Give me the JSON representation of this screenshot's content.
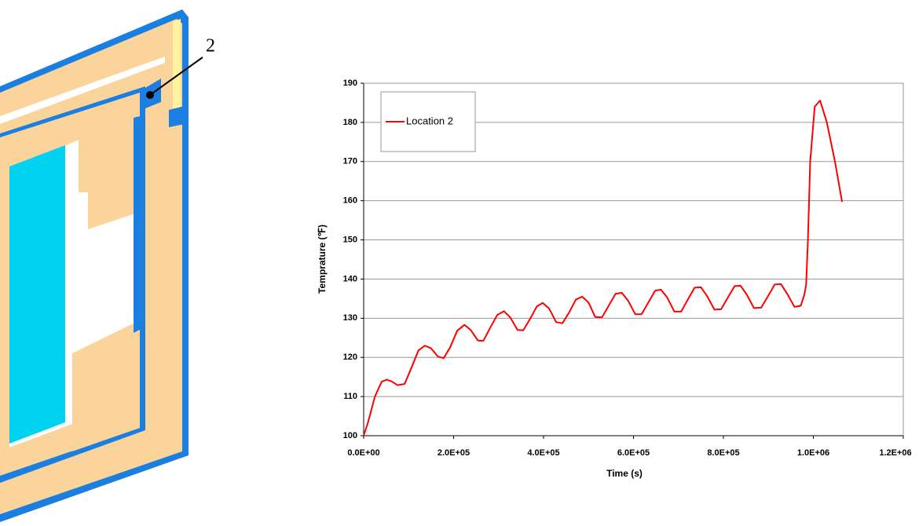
{
  "diagram": {
    "label": "2"
  },
  "chart_data": {
    "type": "line",
    "xlabel": "Time (s)",
    "ylabel": "Temprature (℉)",
    "x": [
      0,
      10000,
      25000,
      40000,
      51000,
      62000,
      75000,
      91000,
      105000,
      122000,
      136000,
      150000,
      165000,
      178000,
      192000,
      208000,
      224000,
      238000,
      254000,
      266000,
      281000,
      297000,
      312000,
      326000,
      342000,
      355000,
      370000,
      385000,
      398000,
      413000,
      428000,
      442000,
      457000,
      472000,
      486000,
      500000,
      515000,
      530000,
      545000,
      560000,
      574000,
      588000,
      604000,
      618000,
      633000,
      648000,
      661000,
      675000,
      691000,
      706000,
      721000,
      736000,
      750000,
      764000,
      780000,
      795000,
      810000,
      825000,
      838000,
      852000,
      868000,
      884000,
      899000,
      914000,
      928000,
      942000,
      958000,
      972000,
      980000,
      984000,
      988000,
      993000,
      1003000,
      1015000,
      1030000,
      1048000,
      1064000
    ],
    "series": [
      {
        "name": "Location 2",
        "color": "#ff0000",
        "values": [
          100,
          103.5,
          110,
          113.8,
          114.3,
          113.9,
          112.9,
          113.2,
          117,
          121.8,
          123,
          122.3,
          120.2,
          119.8,
          122.5,
          126.8,
          128.3,
          127,
          124.3,
          124.2,
          127.5,
          130.8,
          131.8,
          130.2,
          127,
          126.9,
          129.8,
          133,
          133.9,
          132.4,
          129,
          128.7,
          131.5,
          134.8,
          135.5,
          134,
          130.3,
          130.2,
          133.2,
          136.2,
          136.5,
          134.5,
          131,
          131,
          134,
          137,
          137.3,
          135.3,
          131.7,
          131.7,
          134.8,
          137.8,
          137.9,
          135.6,
          132.2,
          132.3,
          135.3,
          138.2,
          138.3,
          136,
          132.6,
          132.7,
          135.6,
          138.6,
          138.7,
          136.2,
          132.9,
          133.2,
          136,
          138.5,
          150,
          170,
          184,
          185.6,
          180,
          170,
          159.7
        ]
      }
    ],
    "xlim": [
      0,
      1200000
    ],
    "ylim": [
      100,
      190
    ],
    "xticks": [
      {
        "value": 0,
        "label": "0.0E+00"
      },
      {
        "value": 200000,
        "label": "2.0E+05"
      },
      {
        "value": 400000,
        "label": "4.0E+05"
      },
      {
        "value": 600000,
        "label": "6.0E+05"
      },
      {
        "value": 800000,
        "label": "8.0E+05"
      },
      {
        "value": 1000000,
        "label": "1.0E+06"
      },
      {
        "value": 1200000,
        "label": "1.2E+06"
      }
    ],
    "yticks": [
      100,
      110,
      120,
      130,
      140,
      150,
      160,
      170,
      180,
      190
    ],
    "grid": true,
    "legend": "upper-left"
  }
}
